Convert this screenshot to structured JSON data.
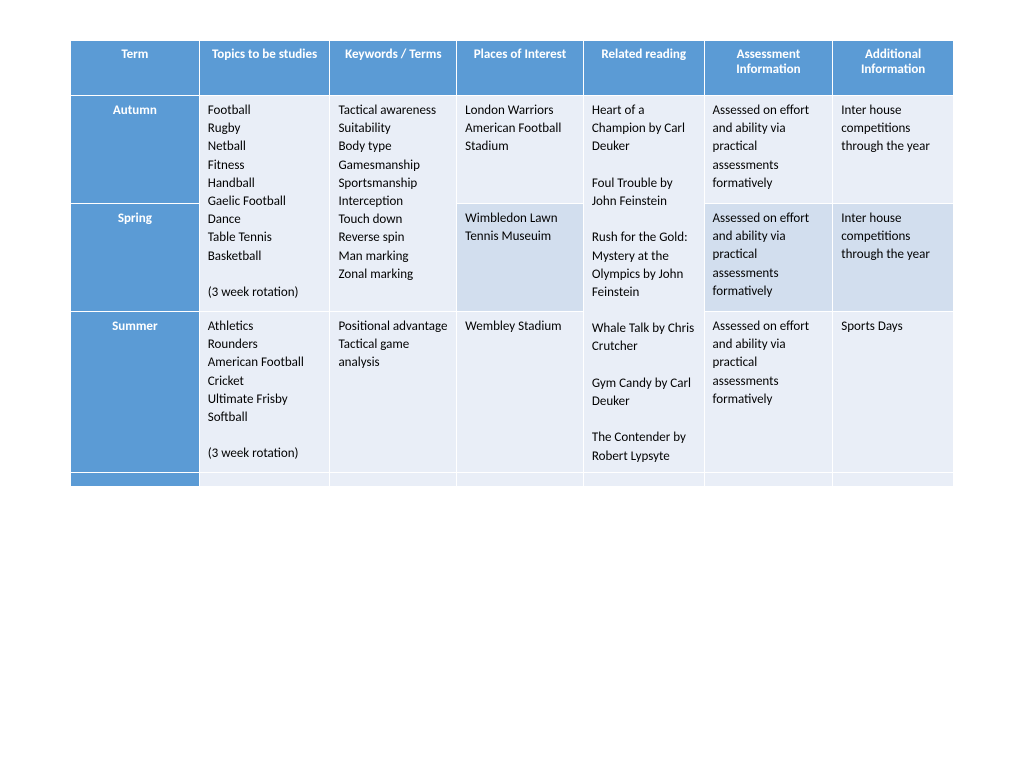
{
  "headers": {
    "term": "Term",
    "topics": "Topics to be studies",
    "keywords": "Keywords / Terms",
    "places": "Places of Interest",
    "reading": "Related reading",
    "assessment": "Assessment Information",
    "additional": "Additional Information"
  },
  "rows": {
    "autumn": {
      "term": "Autumn",
      "places": "London Warriors American Football Stadium",
      "assessment": "Assessed on effort and ability via practical assessments formatively",
      "additional": "Inter house competitions through the year"
    },
    "spring": {
      "term": "Spring",
      "places": "Wimbledon Lawn Tennis Museuim",
      "assessment": "Assessed on effort and ability via practical assessments formatively",
      "additional": "Inter house competitions through the year"
    },
    "summer": {
      "term": "Summer",
      "topics": "Athletics\nRounders\nAmerican Football\nCricket\nUltimate Frisby\nSoftball\n\n(3 week rotation)",
      "keywords": "Positional advantage\nTactical game analysis",
      "places": "Wembley Stadium",
      "assessment": "Assessed on effort and ability via practical assessments formatively",
      "additional": "Sports Days"
    }
  },
  "merged": {
    "topics_as": "Football\nRugby\nNetball\nFitness\nHandball\nGaelic Football\nDance\nTable Tennis\nBasketball\n\n(3 week rotation)",
    "keywords_as": "Tactical awareness\nSuitability\nBody type\nGamesmanship\nSportsmanship\nInterception\nTouch down\nReverse spin\nMan marking\nZonal marking",
    "reading_all": "Heart of a Champion by Carl Deuker\n\nFoul Trouble by John Feinstein\n\nRush for the Gold: Mystery at the Olympics by John Feinstein\n\nWhale Talk by Chris Crutcher\n\nGym Candy by Carl Deuker\n\nThe Contender by Robert Lypsyte"
  },
  "style": {
    "header_bg": "#5b9bd5",
    "header_fg": "#ffffff",
    "row_odd_bg": "#e9eef7",
    "row_even_bg": "#d2deee",
    "font_family": "Calibri",
    "font_size_pt": 10
  }
}
